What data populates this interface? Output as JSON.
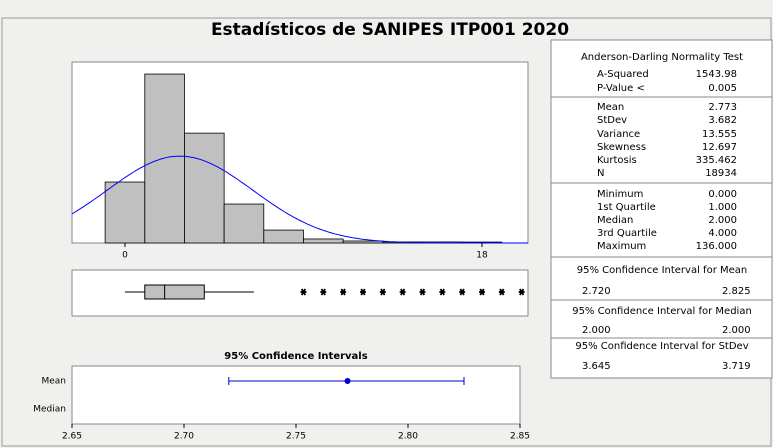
{
  "title": "Estadísticos de SANIPES ITP001 2020",
  "chart_data": [
    {
      "type": "histogram",
      "bins": [
        -1,
        1,
        3,
        5,
        7,
        9,
        11,
        13,
        15,
        17,
        19
      ],
      "values": [
        2880,
        7980,
        5190,
        1840,
        610,
        190,
        95,
        50,
        50,
        45
      ],
      "color": "#c0c0c0",
      "curve_color": "#0000ff",
      "xlim": [
        -2.67,
        20.32
      ],
      "ylim": [
        0,
        8550
      ],
      "xticks": [
        0,
        18
      ]
    },
    {
      "type": "boxplot",
      "whisker_high": 6.5,
      "outliers": [
        9,
        10,
        11,
        12,
        13,
        14,
        15,
        16,
        17,
        18,
        19,
        20
      ],
      "color": "#c0c0c0",
      "xlim": [
        -2.67,
        20.32
      ]
    },
    {
      "type": "interval",
      "title": "95% Confidence Intervals",
      "categories": [
        "Mean",
        "Median"
      ],
      "xlim": [
        2.65,
        2.85
      ],
      "xticks": [
        2.65,
        {
          "value": 2.7,
          "label": "2.70"
        },
        2.75,
        {
          "value": 2.8,
          "label": "2.80"
        },
        2.85
      ],
      "color": "#0000cc"
    }
  ],
  "stats": {
    "test_title": "Anderson-Darling Normality Test",
    "groups": [
      [
        {
          "name": "A-Squared",
          "value": 1543.98
        },
        {
          "name": "P-Value <",
          "value": 0.005
        }
      ],
      [
        {
          "name": "Mean",
          "value": 2.773
        },
        {
          "name": "StDev",
          "value": 3.682
        },
        {
          "name": "Variance",
          "value": 13.555
        },
        {
          "name": "Skewness",
          "value": 12.697
        },
        {
          "name": "Kurtosis",
          "value": 335.462
        },
        {
          "name": "N",
          "value": 18934
        }
      ],
      [
        {
          "name": "Minimum",
          "value": 0,
          "label": "0.000"
        },
        {
          "name": "1st Quartile",
          "value": 1,
          "label": "1.000"
        },
        {
          "name": "Median",
          "value": 2,
          "label": "2.000"
        },
        {
          "name": "3rd Quartile",
          "value": 4,
          "label": "4.000"
        },
        {
          "name": "Maximum",
          "value": 136,
          "label": "136.000"
        }
      ]
    ],
    "intervals": [
      {
        "title": "95% Confidence Interval for Mean",
        "low": {
          "value": 2.72,
          "label": "2.720"
        },
        "high": {
          "value": 2.825
        }
      },
      {
        "title": "95% Confidence Interval for Median",
        "low": {
          "value": 2,
          "label": "2.000"
        },
        "high": {
          "value": 2,
          "label": "2.000"
        }
      },
      {
        "title": "95% Confidence Interval for StDev",
        "low": {
          "value": 3.645
        },
        "high": {
          "value": 3.719
        }
      }
    ]
  }
}
